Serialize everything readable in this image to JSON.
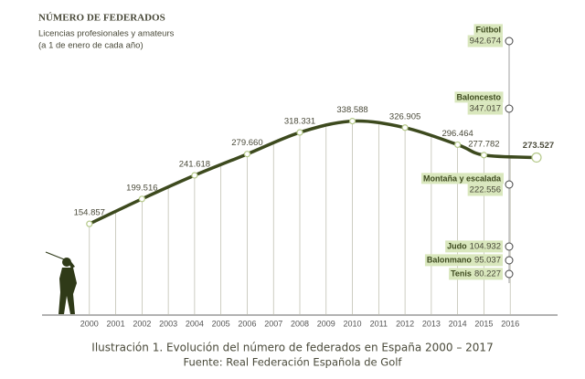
{
  "chart_data": {
    "type": "line",
    "title": "NÚMERO DE FEDERADOS",
    "subtitle": "Licencias profesionales y amateurs",
    "note": "(a 1 de enero de cada año)",
    "caption": "Ilustración 1. Evolución del número de federados en España 2000 – 2017",
    "source": "Fuente: Real Federación Española de Golf",
    "x": [
      2000,
      2002,
      2004,
      2006,
      2008,
      2010,
      2012,
      2014,
      2015,
      2017
    ],
    "values": [
      154857,
      199516,
      241618,
      279660,
      318331,
      338588,
      326905,
      296464,
      277782,
      273527
    ],
    "value_labels": [
      "154.857",
      "199.516",
      "241.618",
      "279.660",
      "318.331",
      "338.588",
      "326.905",
      "296.464",
      "277.782",
      "273.527"
    ],
    "color": "#3d4a1e",
    "xlim": [
      1998.2,
      2017.8
    ],
    "xticks": [
      2000,
      2001,
      2002,
      2003,
      2004,
      2005,
      2006,
      2007,
      2008,
      2009,
      2010,
      2011,
      2012,
      2013,
      2014,
      2015,
      2016
    ],
    "ylim": [
      0,
      400000
    ],
    "comparisons": [
      {
        "name": "Fútbol",
        "value": "942.674"
      },
      {
        "name": "Baloncesto",
        "value": "347.017"
      },
      {
        "name": "Montaña y escalada",
        "value": "222.556"
      },
      {
        "name": "Judo",
        "value": "104.932"
      },
      {
        "name": "Balonmano",
        "value": "95.037"
      },
      {
        "name": "Tenis",
        "value": "80.227"
      }
    ]
  }
}
